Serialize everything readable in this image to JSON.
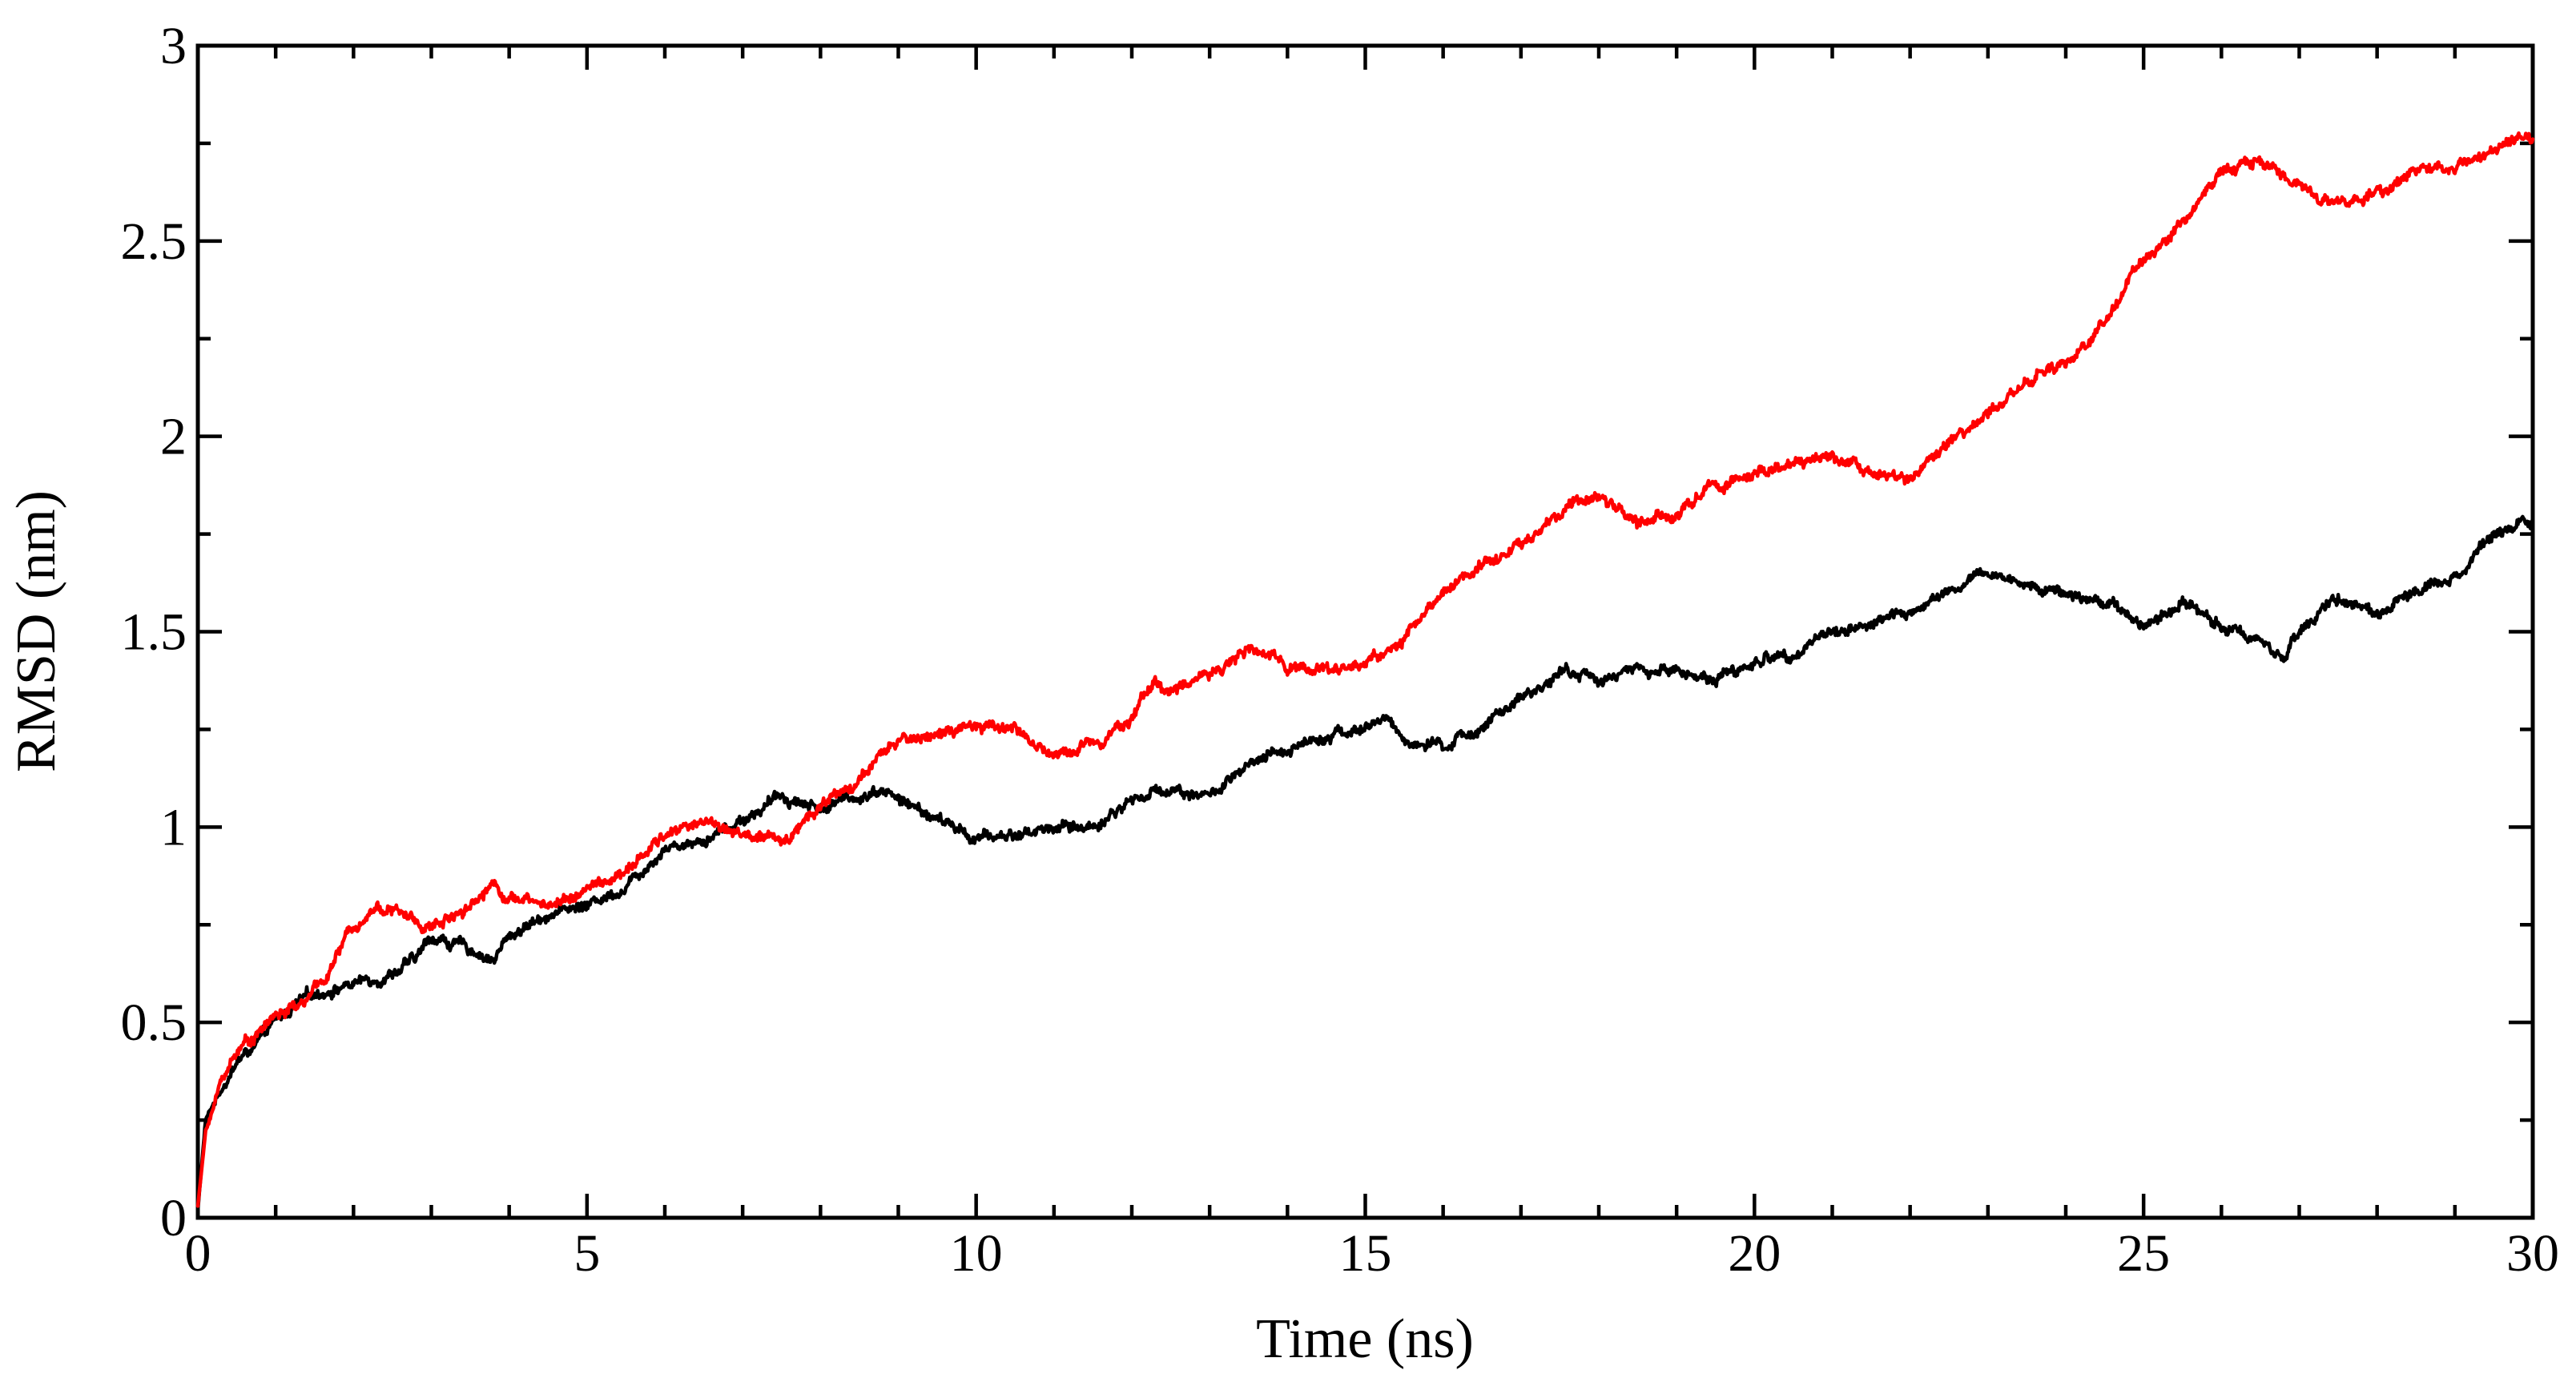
{
  "chart_data": {
    "type": "line",
    "xlabel": "Time (ns)",
    "ylabel": "RMSD (nm)",
    "xlim": [
      0,
      30
    ],
    "ylim": [
      0,
      3
    ],
    "x_ticks": [
      0,
      5,
      10,
      15,
      20,
      25,
      30
    ],
    "x_tick_labels": [
      "0",
      "5",
      "10",
      "15",
      "20",
      "25",
      "30"
    ],
    "x_minor_step": 1,
    "y_ticks": [
      0,
      0.5,
      1,
      1.5,
      2,
      2.5,
      3
    ],
    "y_tick_labels": [
      "0",
      "0.5",
      "1",
      "1.5",
      "2",
      "2.5",
      "3"
    ],
    "y_minor_step": 0.25,
    "grid": false,
    "legend": "none",
    "series": [
      {
        "color": "#000000",
        "x": [
          0,
          0.1,
          0.3,
          0.5,
          0.8,
          1.0,
          1.3,
          1.6,
          2.0,
          2.4,
          2.8,
          3.0,
          3.3,
          3.6,
          3.8,
          4.0,
          4.5,
          5.0,
          5.5,
          6.0,
          6.5,
          7.0,
          7.5,
          8.0,
          8.5,
          8.8,
          9.0,
          9.5,
          10.0,
          10.5,
          11.0,
          11.5,
          12.0,
          12.5,
          13.0,
          13.5,
          14.0,
          14.5,
          15.0,
          15.3,
          15.5,
          16.0,
          16.5,
          17.0,
          17.5,
          18.0,
          18.5,
          19.0,
          19.5,
          20.0,
          20.5,
          21.0,
          21.5,
          22.0,
          22.5,
          23.0,
          23.5,
          24.0,
          24.5,
          25.0,
          25.5,
          26.0,
          26.5,
          26.8,
          27.0,
          27.5,
          28.0,
          28.5,
          29.0,
          29.5,
          30.0
        ],
        "y": [
          0.02,
          0.25,
          0.33,
          0.4,
          0.45,
          0.5,
          0.55,
          0.58,
          0.6,
          0.62,
          0.66,
          0.72,
          0.7,
          0.68,
          0.66,
          0.72,
          0.78,
          0.8,
          0.85,
          0.95,
          0.97,
          1.02,
          1.08,
          1.05,
          1.08,
          1.1,
          1.07,
          1.02,
          0.97,
          0.98,
          1.0,
          1.0,
          1.07,
          1.1,
          1.08,
          1.15,
          1.2,
          1.24,
          1.25,
          1.28,
          1.22,
          1.2,
          1.26,
          1.32,
          1.4,
          1.38,
          1.4,
          1.4,
          1.38,
          1.42,
          1.45,
          1.5,
          1.52,
          1.55,
          1.6,
          1.65,
          1.62,
          1.6,
          1.58,
          1.52,
          1.58,
          1.52,
          1.48,
          1.44,
          1.5,
          1.58,
          1.55,
          1.6,
          1.65,
          1.75,
          1.8
        ]
      },
      {
        "color": "#ff0000",
        "x": [
          0,
          0.1,
          0.3,
          0.5,
          0.8,
          1.0,
          1.3,
          1.6,
          2.0,
          2.3,
          2.6,
          3.0,
          3.3,
          3.6,
          3.8,
          4.0,
          4.5,
          5.0,
          5.5,
          6.0,
          6.5,
          7.0,
          7.5,
          8.0,
          8.5,
          9.0,
          9.5,
          10.0,
          10.5,
          10.8,
          11.0,
          11.5,
          12.0,
          12.3,
          12.5,
          13.0,
          13.5,
          14.0,
          14.5,
          15.0,
          15.5,
          16.0,
          16.5,
          17.0,
          17.5,
          18.0,
          18.5,
          19.0,
          19.5,
          20.0,
          20.5,
          21.0,
          21.5,
          22.0,
          22.5,
          23.0,
          23.5,
          24.0,
          24.5,
          25.0,
          25.5,
          26.0,
          26.5,
          27.0,
          27.5,
          28.0,
          28.5,
          29.0,
          29.5,
          30.0
        ],
        "y": [
          0.03,
          0.22,
          0.35,
          0.43,
          0.48,
          0.52,
          0.54,
          0.6,
          0.75,
          0.8,
          0.78,
          0.74,
          0.78,
          0.82,
          0.86,
          0.82,
          0.8,
          0.84,
          0.88,
          0.98,
          1.02,
          0.98,
          0.96,
          1.06,
          1.12,
          1.22,
          1.24,
          1.25,
          1.26,
          1.2,
          1.18,
          1.22,
          1.28,
          1.38,
          1.34,
          1.4,
          1.45,
          1.42,
          1.4,
          1.42,
          1.48,
          1.6,
          1.68,
          1.72,
          1.8,
          1.85,
          1.78,
          1.8,
          1.88,
          1.9,
          1.92,
          1.95,
          1.92,
          1.88,
          1.98,
          2.05,
          2.15,
          2.18,
          2.3,
          2.45,
          2.55,
          2.68,
          2.7,
          2.65,
          2.6,
          2.62,
          2.68,
          2.7,
          2.73,
          2.77
        ]
      }
    ]
  }
}
